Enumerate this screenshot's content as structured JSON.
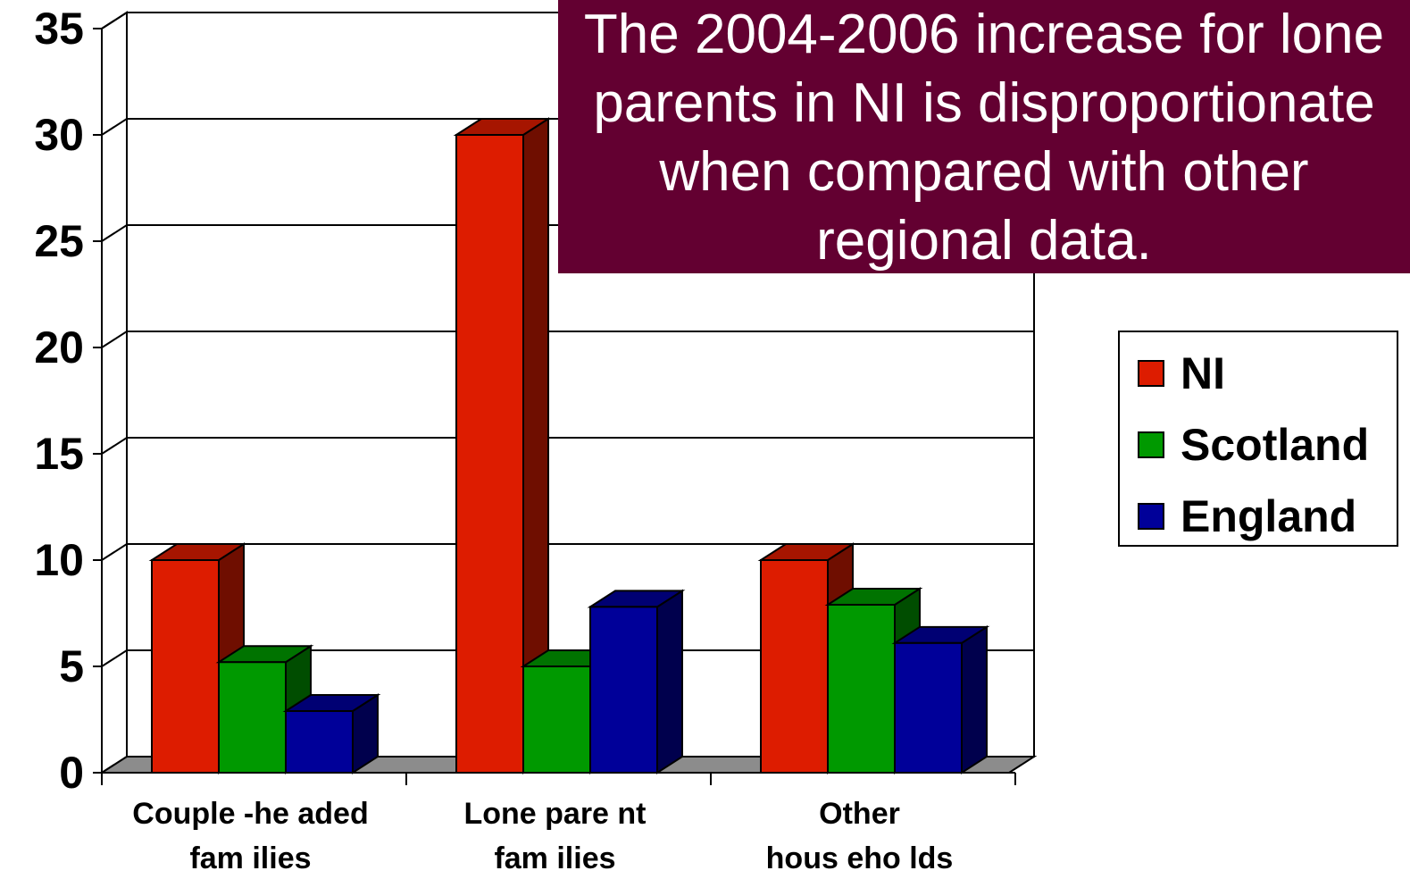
{
  "callout": {
    "lines": [
      "The 2004-2006 increase for lone",
      "parents in NI is disproportionate",
      "when compared with other",
      "regional data."
    ]
  },
  "chart_data": {
    "type": "bar",
    "style": "3d-clustered",
    "categories": [
      [
        "Couple -he aded",
        "fam ilies"
      ],
      [
        "Lone  pare nt",
        "fam ilies"
      ],
      [
        "Other",
        "hous eho lds"
      ]
    ],
    "series": [
      {
        "name": "NI",
        "color": "#dd1c00",
        "values": [
          10,
          30,
          10
        ]
      },
      {
        "name": "Scotland",
        "color": "#009900",
        "values": [
          5.2,
          5,
          7.9
        ]
      },
      {
        "name": "England",
        "color": "#000099",
        "values": [
          2.9,
          7.8,
          6.1
        ]
      }
    ],
    "ylim": [
      0,
      35
    ],
    "yticks": [
      0,
      5,
      10,
      15,
      20,
      25,
      30,
      35
    ],
    "grid": true,
    "legend_position": "right"
  }
}
